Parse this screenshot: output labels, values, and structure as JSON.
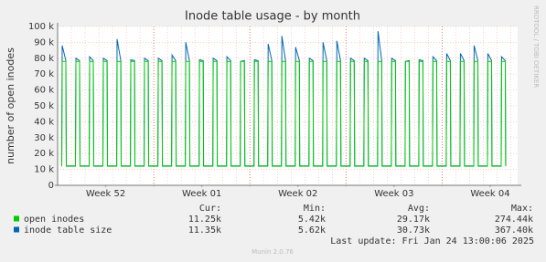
{
  "chart_data": {
    "type": "line",
    "title": "Inode table usage - by month",
    "y_label": "number of open inodes",
    "side_label": "RRDTOOL / TOBI OETIKER",
    "x": [
      0.3,
      0.33,
      0.6,
      0.63,
      1.3,
      1.33,
      1.6,
      1.63,
      2.3,
      2.33,
      2.6,
      2.63,
      3.3,
      3.33,
      3.6,
      3.63,
      4.3,
      4.33,
      4.6,
      4.63,
      5.3,
      5.33,
      5.6,
      5.63,
      6.3,
      6.33,
      6.6,
      6.63,
      7.3,
      7.33,
      7.6,
      7.63,
      8.3,
      8.33,
      8.6,
      8.63,
      9.3,
      9.33,
      9.6,
      9.63,
      10.3,
      10.33,
      10.6,
      10.63,
      11.3,
      11.33,
      11.6,
      11.63,
      12.3,
      12.33,
      12.6,
      12.63,
      13.3,
      13.33,
      13.6,
      13.63,
      14.3,
      14.33,
      14.6,
      14.63,
      15.3,
      15.33,
      15.6,
      15.63,
      16.3,
      16.33,
      16.6,
      16.63,
      17.3,
      17.33,
      17.6,
      17.63,
      18.3,
      18.33,
      18.6,
      18.63,
      19.3,
      19.33,
      19.6,
      19.63,
      20.3,
      20.33,
      20.6,
      20.63,
      21.3,
      21.33,
      21.6,
      21.63,
      22.3,
      22.33,
      22.6,
      22.63,
      23.3,
      23.33,
      23.6,
      23.63,
      24.3,
      24.33,
      24.6,
      24.63,
      25.3,
      25.33,
      25.6,
      25.63,
      26.3,
      26.33,
      26.6,
      26.63,
      27.3,
      27.33,
      27.6,
      27.63,
      28.3,
      28.33,
      28.6,
      28.63,
      29.3,
      29.33,
      29.6,
      29.63,
      30.3,
      30.33,
      30.6,
      30.63,
      31.3,
      31.33,
      31.6,
      31.63,
      32.3,
      32.33,
      32.6,
      32.63
    ],
    "series": [
      {
        "name": "open inodes",
        "color": "#00cc00",
        "values": [
          12000,
          78000,
          78000,
          12000,
          12000,
          78000,
          78000,
          12000,
          12000,
          78000,
          78000,
          12000,
          12000,
          78000,
          78000,
          12000,
          12000,
          78000,
          78000,
          12000,
          12000,
          78000,
          78000,
          12000,
          12000,
          78000,
          78000,
          12000,
          12000,
          78000,
          78000,
          12000,
          12000,
          78000,
          78000,
          12000,
          12000,
          78000,
          78000,
          12000,
          12000,
          78000,
          78000,
          12000,
          12000,
          78000,
          78000,
          12000,
          12000,
          78000,
          78000,
          12000,
          12000,
          78000,
          78000,
          12000,
          12000,
          78000,
          78000,
          12000,
          12000,
          78000,
          78000,
          12000,
          12000,
          78000,
          78000,
          12000,
          12000,
          78000,
          78000,
          12000,
          12000,
          78000,
          78000,
          12000,
          12000,
          78000,
          78000,
          12000,
          12000,
          78000,
          78000,
          12000,
          12000,
          78000,
          78000,
          12000,
          12000,
          78000,
          78000,
          12000,
          12000,
          78000,
          78000,
          12000,
          12000,
          78000,
          78000,
          12000,
          12000,
          78000,
          78000,
          12000,
          12000,
          78000,
          78000,
          12000,
          12000,
          78000,
          78000,
          12000,
          12000,
          78000,
          78000,
          12000,
          12000,
          78000,
          78000,
          12000,
          12000,
          78000,
          78000,
          12000,
          12000,
          78000,
          78000,
          12000,
          12000,
          78000,
          78000,
          12000
        ]
      },
      {
        "name": "inode table size",
        "color": "#0066b3",
        "values": [
          12200,
          88000,
          78500,
          12200,
          12200,
          80000,
          78500,
          12200,
          12200,
          81000,
          78500,
          12200,
          12200,
          80000,
          78500,
          12200,
          12200,
          92000,
          78500,
          12200,
          12200,
          79000,
          78500,
          12200,
          12200,
          80000,
          78500,
          12200,
          12200,
          80000,
          78500,
          12200,
          12200,
          82000,
          78500,
          12200,
          12200,
          90000,
          78500,
          12200,
          12200,
          79000,
          78500,
          12200,
          12200,
          80000,
          78500,
          12200,
          12200,
          81000,
          78500,
          12200,
          12200,
          78000,
          78500,
          12200,
          12200,
          79000,
          78500,
          12200,
          12200,
          89000,
          78500,
          12200,
          12200,
          94000,
          78500,
          12200,
          12200,
          87000,
          78500,
          12200,
          12200,
          80000,
          78500,
          12200,
          12200,
          90000,
          78500,
          12200,
          12200,
          91000,
          78500,
          12200,
          12200,
          80000,
          78500,
          12200,
          12200,
          80000,
          78500,
          12200,
          12200,
          97000,
          78500,
          12200,
          12200,
          80000,
          78500,
          12200,
          12200,
          78000,
          78500,
          12200,
          12200,
          79000,
          78500,
          12200,
          12200,
          81000,
          78500,
          12200,
          12200,
          83000,
          78500,
          12200,
          12200,
          83000,
          78500,
          12200,
          12200,
          88000,
          78500,
          12200,
          12200,
          83000,
          78500,
          12200,
          12200,
          81000,
          78500,
          12200
        ]
      }
    ],
    "xlim": [
      0,
      33.5
    ],
    "xticks": [
      {
        "value": 3.5,
        "label": "Week 52"
      },
      {
        "value": 10.5,
        "label": "Week 01"
      },
      {
        "value": 17.5,
        "label": "Week 02"
      },
      {
        "value": 24.5,
        "label": "Week 03"
      },
      {
        "value": 31.5,
        "label": "Week 04"
      }
    ],
    "x_major_grid": [
      7,
      14,
      21,
      28
    ],
    "x_minor_grid": [
      1,
      2,
      3,
      4,
      5,
      6,
      8,
      9,
      10,
      11,
      12,
      13,
      15,
      16,
      17,
      18,
      19,
      20,
      22,
      23,
      24,
      25,
      26,
      27,
      29,
      30,
      31,
      32,
      33
    ],
    "ylim": [
      0,
      100000
    ],
    "yticks": [
      0,
      {
        "value": 10000,
        "label": "10 k"
      },
      {
        "value": 20000,
        "label": "20 k"
      },
      {
        "value": 30000,
        "label": "30 k"
      },
      {
        "value": 40000,
        "label": "40 k"
      },
      {
        "value": 50000,
        "label": "50 k"
      },
      {
        "value": 60000,
        "label": "60 k"
      },
      {
        "value": 70000,
        "label": "70 k"
      },
      {
        "value": 80000,
        "label": "80 k"
      },
      {
        "value": 90000,
        "label": "90 k"
      },
      {
        "value": 100000,
        "label": "100 k"
      }
    ],
    "grid": true,
    "stats": {
      "headers": [
        "Cur:",
        "Min:",
        "Avg:",
        "Max:"
      ],
      "rows": [
        [
          "11.25k",
          "5.42k",
          "29.17k",
          "274.44k"
        ],
        [
          "11.35k",
          "5.62k",
          "30.73k",
          "367.40k"
        ]
      ]
    },
    "last_update": "Last update: Fri Jan 24 13:00:06 2025",
    "footer": "Munin 2.0.76"
  }
}
